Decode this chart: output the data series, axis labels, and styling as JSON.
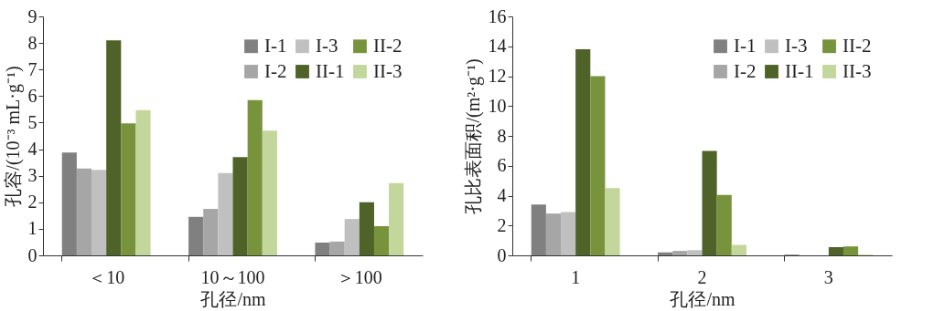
{
  "chart_data": [
    {
      "type": "bar",
      "xlabel": "孔径/nm",
      "ylabel": "孔容/(10⁻³ mL·g⁻¹)",
      "categories": [
        "＜10",
        "10～100",
        "＞100"
      ],
      "ylim": [
        0,
        9
      ],
      "yticks": [
        0,
        1,
        2,
        3,
        4,
        5,
        6,
        7,
        8,
        9
      ],
      "grid": false,
      "legend": "top right",
      "series": [
        {
          "name": "I-1",
          "color": "#808080",
          "values": [
            3.87,
            1.45,
            0.48
          ]
        },
        {
          "name": "I-2",
          "color": "#a6a6a6",
          "values": [
            3.27,
            1.75,
            0.52
          ]
        },
        {
          "name": "I-3",
          "color": "#c0c0c0",
          "values": [
            3.22,
            3.1,
            1.37
          ]
        },
        {
          "name": "II-1",
          "color": "#4f6228",
          "values": [
            8.1,
            3.7,
            2.0
          ]
        },
        {
          "name": "II-2",
          "color": "#77933c",
          "values": [
            4.97,
            5.85,
            1.1
          ]
        },
        {
          "name": "II-3",
          "color": "#c3d69b",
          "values": [
            5.47,
            4.7,
            2.72
          ]
        }
      ]
    },
    {
      "type": "bar",
      "xlabel": "孔径/nm",
      "ylabel": "孔比表面积/(m²·g⁻¹)",
      "categories": [
        "1",
        "2",
        "3"
      ],
      "ylim": [
        0,
        16
      ],
      "yticks": [
        0,
        2,
        4,
        6,
        8,
        10,
        12,
        14,
        16
      ],
      "grid": false,
      "legend": "top right",
      "series": [
        {
          "name": "I-1",
          "color": "#808080",
          "values": [
            3.4,
            0.2,
            0.05
          ]
        },
        {
          "name": "I-2",
          "color": "#a6a6a6",
          "values": [
            2.8,
            0.3,
            null
          ]
        },
        {
          "name": "I-3",
          "color": "#c0c0c0",
          "values": [
            2.9,
            0.35,
            null
          ]
        },
        {
          "name": "II-1",
          "color": "#4f6228",
          "values": [
            13.8,
            7.0,
            0.55
          ]
        },
        {
          "name": "II-2",
          "color": "#77933c",
          "values": [
            12.0,
            4.05,
            0.6
          ]
        },
        {
          "name": "II-3",
          "color": "#c3d69b",
          "values": [
            4.5,
            0.7,
            0.05
          ]
        }
      ]
    }
  ]
}
